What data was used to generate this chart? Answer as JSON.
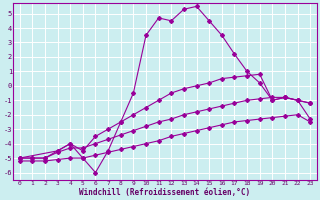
{
  "xlabel": "Windchill (Refroidissement éolien,°C)",
  "bg_color": "#cceef0",
  "grid_color": "#bbdddd",
  "line_color": "#990099",
  "xlim": [
    -0.5,
    23.5
  ],
  "ylim": [
    -6.5,
    5.7
  ],
  "yticks": [
    -6,
    -5,
    -4,
    -3,
    -2,
    -1,
    0,
    1,
    2,
    3,
    4,
    5
  ],
  "xticks": [
    0,
    1,
    2,
    3,
    4,
    5,
    6,
    7,
    8,
    9,
    10,
    11,
    12,
    13,
    14,
    15,
    16,
    17,
    18,
    19,
    20,
    21,
    22,
    23
  ],
  "series": [
    {
      "x": [
        0,
        1,
        2,
        3,
        4,
        5,
        6,
        7,
        8,
        9,
        10,
        11,
        12,
        13,
        14,
        15,
        16,
        17,
        18,
        19,
        20,
        21,
        22,
        23
      ],
      "y": [
        -5.0,
        -5.0,
        -5.0,
        -4.5,
        -4.0,
        -5.0,
        -6.0,
        -4.5,
        -2.5,
        -0.5,
        3.5,
        4.7,
        4.5,
        5.3,
        5.5,
        4.5,
        3.5,
        2.2,
        1.0,
        0.2,
        -1.0,
        -0.8,
        -1.0,
        -1.2
      ]
    },
    {
      "x": [
        0,
        3,
        4,
        5,
        6,
        7,
        8,
        9,
        10,
        11,
        12,
        13,
        14,
        15,
        16,
        17,
        18,
        19,
        20,
        21,
        22,
        23
      ],
      "y": [
        -5.0,
        -4.5,
        -4.0,
        -4.5,
        -3.5,
        -3.0,
        -2.5,
        -2.0,
        -1.5,
        -1.0,
        -0.5,
        -0.2,
        0.0,
        0.2,
        0.5,
        0.6,
        0.7,
        0.8,
        -1.0,
        -0.8,
        -1.0,
        -1.2
      ]
    },
    {
      "x": [
        0,
        1,
        2,
        3,
        4,
        5,
        6,
        7,
        8,
        9,
        10,
        11,
        12,
        13,
        14,
        15,
        16,
        17,
        18,
        19,
        20,
        21,
        22,
        23
      ],
      "y": [
        -5.0,
        -5.0,
        -5.0,
        -4.6,
        -4.3,
        -4.3,
        -4.0,
        -3.7,
        -3.4,
        -3.1,
        -2.8,
        -2.5,
        -2.3,
        -2.0,
        -1.8,
        -1.6,
        -1.4,
        -1.2,
        -1.0,
        -0.9,
        -0.8,
        -0.8,
        -1.0,
        -2.3
      ]
    },
    {
      "x": [
        0,
        1,
        2,
        3,
        4,
        5,
        6,
        7,
        8,
        9,
        10,
        11,
        12,
        13,
        14,
        15,
        16,
        17,
        18,
        19,
        20,
        21,
        22,
        23
      ],
      "y": [
        -5.2,
        -5.2,
        -5.2,
        -5.1,
        -5.0,
        -5.0,
        -4.8,
        -4.6,
        -4.4,
        -4.2,
        -4.0,
        -3.8,
        -3.5,
        -3.3,
        -3.1,
        -2.9,
        -2.7,
        -2.5,
        -2.4,
        -2.3,
        -2.2,
        -2.1,
        -2.0,
        -2.5
      ]
    }
  ]
}
